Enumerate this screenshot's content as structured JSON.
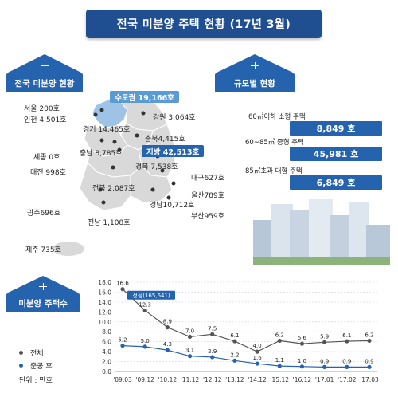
{
  "title": "전국 미분양 주택 현황 (17년 3월)",
  "nation_section": {
    "title": "전국 미분양 현황"
  },
  "size_section": {
    "title": "규모별 현황"
  },
  "trend_section": {
    "title": "미분양 주택수"
  },
  "capital": {
    "label": "수도권 19,166호",
    "color": "#9ec3e6",
    "regions": {
      "seoul": "서울 200호",
      "incheon": "인천 4,501호",
      "gyeonggi": "경기 14,465호"
    }
  },
  "local": {
    "label": "지방 42,513호",
    "color": "#2563ae",
    "regions": {
      "gangwon": "강원 3,064호",
      "chungbuk": "충북4,415호",
      "sejong": "세종 0호",
      "chungnam": "충남 8,785호",
      "daejeon": "대전 998호",
      "gyeongbuk": "경북 7,538호",
      "daegu": "대구627호",
      "jeonbuk": "전북 2,087호",
      "ulsan": "울산789호",
      "gyeongnam": "경남10,712호",
      "gwangju": "광주696호",
      "jeonnam": "전남 1,108호",
      "busan": "부산959호",
      "jeju": "제주 735호"
    }
  },
  "sizes": [
    {
      "label": "60㎡이하 소형 주택",
      "value": "8,849 호"
    },
    {
      "label": "60~85㎡ 중형 주택",
      "value": "45,981 호"
    },
    {
      "label": "85㎡초과 대형 주택",
      "value": "6,849 호"
    }
  ],
  "legend": {
    "total": "전체",
    "completed": "준공 후",
    "unit": "단위 : 만호"
  },
  "colors": {
    "accent": "#2563ae",
    "banner": "#1f4e91",
    "total_line": "#555555",
    "completed_line": "#2563ae"
  },
  "chart_data": {
    "type": "line",
    "categories": [
      "'09.03",
      "'09.12",
      "'10.12",
      "'11.12",
      "'12.12",
      "'13.12",
      "'14.12",
      "'15.12",
      "'16.12",
      "'17.01",
      "'17.02",
      "'17.03"
    ],
    "series": [
      {
        "name": "전체",
        "values": [
          16.6,
          12.3,
          8.9,
          7.0,
          7.5,
          6.1,
          4.0,
          6.2,
          5.6,
          5.9,
          6.1,
          6.2
        ]
      },
      {
        "name": "준공 후",
        "values": [
          5.2,
          5.0,
          4.3,
          3.1,
          2.9,
          2.2,
          1.6,
          1.1,
          1.0,
          0.9,
          0.9,
          0.9
        ]
      }
    ],
    "y_ticks": [
      "0.0",
      "2.0",
      "4.0",
      "6.0",
      "8.0",
      "10.0",
      "12.0",
      "14.0",
      "16.0",
      "18.0"
    ],
    "ylim": [
      0,
      18
    ],
    "annotation": "정점(165,641)",
    "grid": true
  }
}
